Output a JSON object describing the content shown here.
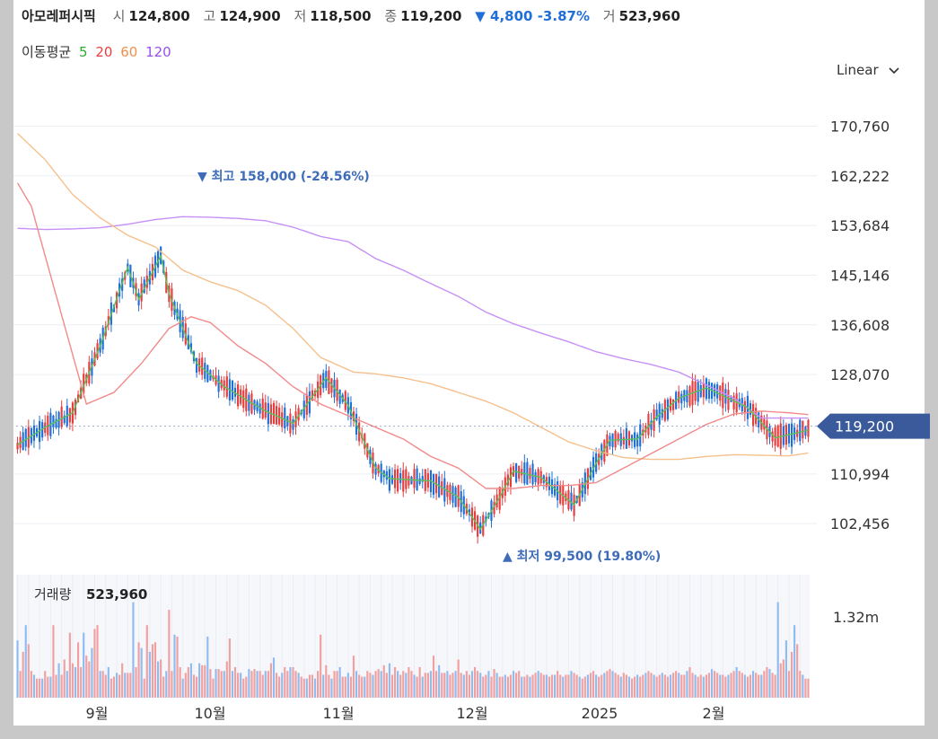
{
  "header": {
    "name": "아모레퍼시픽",
    "open_label": "시",
    "open": "124,800",
    "high_label": "고",
    "high": "124,900",
    "low_label": "저",
    "low": "118,500",
    "close_label": "종",
    "close": "119,200",
    "change": "▼ 4,800 -3.87%",
    "volume_label": "거",
    "volume": "523,960"
  },
  "ma_legend": {
    "label": "이동평균",
    "items": [
      {
        "text": "5",
        "color": "#2eaa2e"
      },
      {
        "text": "20",
        "color": "#e8403f"
      },
      {
        "text": "60",
        "color": "#f0904a"
      },
      {
        "text": "120",
        "color": "#9a4ff0"
      }
    ]
  },
  "scale_selector": {
    "label": "Linear",
    "icon": "chevron-down-icon"
  },
  "colors": {
    "up": "#e63d3d",
    "down": "#1f6fd6",
    "ma5": "#5cc05c",
    "ma20": "#f28a8a",
    "ma60": "#f6c08d",
    "ma120": "#c690f7",
    "price_tag": "#3a5a9c",
    "annotation": "#3f6cb8",
    "vol_up": "#f0a0a0",
    "vol_down": "#8fbcf0"
  },
  "chart_data": {
    "type": "candlestick",
    "y_axis": {
      "ticks": [
        170760,
        162222,
        153684,
        145146,
        136608,
        128070,
        110994,
        102456
      ],
      "range": [
        96000,
        177000
      ]
    },
    "x_axis": {
      "labels": [
        "9월",
        "10월",
        "11월",
        "12월",
        "2025",
        "2월"
      ]
    },
    "current_price": {
      "label": "119,200",
      "value": 119200
    },
    "high_marker": {
      "text": "▼ 최고 158,000 (-24.56%)",
      "value": 158000
    },
    "low_marker": {
      "text": "▲ 최저 99,500 (19.80%)",
      "value": 99500
    },
    "volume_panel": {
      "title": "거래량",
      "value": "523,960",
      "axis_label": "1.32m",
      "axis_value": 1320000
    },
    "series": [
      {
        "name": "5",
        "anchors": [
          [
            0,
            116000
          ],
          [
            10,
            119000
          ],
          [
            20,
            121500
          ],
          [
            30,
            133000
          ],
          [
            40,
            146500
          ],
          [
            44,
            141000
          ],
          [
            52,
            148500
          ],
          [
            55,
            142000
          ],
          [
            65,
            130000
          ],
          [
            75,
            126000
          ],
          [
            90,
            121800
          ],
          [
            100,
            119700
          ],
          [
            112,
            127500
          ],
          [
            120,
            122800
          ],
          [
            130,
            112000
          ],
          [
            135,
            110200
          ],
          [
            150,
            109800
          ],
          [
            160,
            107000
          ],
          [
            168,
            101500
          ],
          [
            175,
            107000
          ],
          [
            180,
            111500
          ],
          [
            190,
            110400
          ],
          [
            202,
            105700
          ],
          [
            210,
            112800
          ],
          [
            215,
            116800
          ],
          [
            225,
            117000
          ],
          [
            232,
            120800
          ],
          [
            240,
            124000
          ],
          [
            250,
            125800
          ],
          [
            258,
            124000
          ],
          [
            265,
            122400
          ],
          [
            275,
            117200
          ],
          [
            287,
            118500
          ]
        ]
      },
      {
        "name": "20",
        "anchors": [
          [
            0,
            161000
          ],
          [
            5,
            157000
          ],
          [
            15,
            140000
          ],
          [
            25,
            123000
          ],
          [
            35,
            125000
          ],
          [
            45,
            130000
          ],
          [
            55,
            136000
          ],
          [
            63,
            138000
          ],
          [
            70,
            137000
          ],
          [
            80,
            133000
          ],
          [
            90,
            130000
          ],
          [
            100,
            126000
          ],
          [
            110,
            123000
          ],
          [
            120,
            121000
          ],
          [
            130,
            119000
          ],
          [
            140,
            117000
          ],
          [
            150,
            114000
          ],
          [
            160,
            112000
          ],
          [
            170,
            108500
          ],
          [
            180,
            108500
          ],
          [
            190,
            109000
          ],
          [
            200,
            109000
          ],
          [
            210,
            109500
          ],
          [
            220,
            112000
          ],
          [
            230,
            114500
          ],
          [
            240,
            117000
          ],
          [
            250,
            119500
          ],
          [
            260,
            121300
          ],
          [
            270,
            121800
          ],
          [
            280,
            121500
          ],
          [
            287,
            121200
          ]
        ]
      },
      {
        "name": "60",
        "anchors": [
          [
            0,
            169500
          ],
          [
            10,
            165000
          ],
          [
            20,
            159000
          ],
          [
            30,
            155000
          ],
          [
            40,
            152000
          ],
          [
            50,
            150000
          ],
          [
            60,
            146000
          ],
          [
            70,
            144000
          ],
          [
            80,
            142500
          ],
          [
            90,
            140000
          ],
          [
            100,
            136000
          ],
          [
            110,
            131000
          ],
          [
            122,
            128500
          ],
          [
            130,
            128200
          ],
          [
            140,
            127500
          ],
          [
            150,
            126500
          ],
          [
            160,
            125000
          ],
          [
            170,
            123500
          ],
          [
            180,
            121500
          ],
          [
            190,
            119000
          ],
          [
            200,
            116500
          ],
          [
            210,
            115000
          ],
          [
            220,
            113800
          ],
          [
            230,
            113500
          ],
          [
            240,
            113500
          ],
          [
            250,
            114000
          ],
          [
            260,
            114300
          ],
          [
            270,
            114200
          ],
          [
            280,
            114100
          ],
          [
            287,
            114600
          ]
        ]
      },
      {
        "name": "120",
        "anchors": [
          [
            0,
            153200
          ],
          [
            10,
            153000
          ],
          [
            20,
            153100
          ],
          [
            30,
            153300
          ],
          [
            40,
            153900
          ],
          [
            50,
            154700
          ],
          [
            60,
            155200
          ],
          [
            70,
            155100
          ],
          [
            80,
            154900
          ],
          [
            90,
            154500
          ],
          [
            100,
            153400
          ],
          [
            110,
            151800
          ],
          [
            120,
            150900
          ],
          [
            130,
            148000
          ],
          [
            140,
            146000
          ],
          [
            150,
            143700
          ],
          [
            160,
            141500
          ],
          [
            170,
            138800
          ],
          [
            180,
            136800
          ],
          [
            190,
            135200
          ],
          [
            200,
            133700
          ],
          [
            210,
            132000
          ],
          [
            220,
            130800
          ],
          [
            230,
            129800
          ],
          [
            240,
            128500
          ],
          [
            250,
            126300
          ],
          [
            260,
            124000
          ],
          [
            270,
            120600
          ],
          [
            287,
            120600
          ]
        ]
      }
    ]
  },
  "volume_bars": [
    0.3,
    0.14,
    0.24,
    0.38,
    0.28,
    0.14,
    0.12,
    0.1,
    0.1,
    0.1,
    0.14,
    0.11,
    0.11,
    0.38,
    0.12,
    0.18,
    0.12,
    0.2,
    0.14,
    0.34,
    0.18,
    0.16,
    0.29,
    0.16,
    0.34,
    0.22,
    0.19,
    0.26,
    0.36,
    0.38,
    0.14,
    0.14,
    0.12,
    0.16,
    0.1,
    0.11,
    0.13,
    0.12,
    0.18,
    0.13,
    0.13,
    0.13,
    0.5,
    0.16,
    0.29,
    0.26,
    0.1,
    0.38,
    0.24,
    0.28,
    0.29,
    0.19,
    0.2,
    0.11,
    0.14,
    0.46,
    0.14,
    0.33,
    0.32,
    0.16,
    0.1,
    0.13,
    0.16,
    0.18,
    0.12,
    0.11,
    0.18,
    0.17,
    0.17,
    0.32,
    0.15,
    0.1,
    0.15,
    0.15,
    0.14,
    0.14,
    0.19,
    0.31,
    0.14,
    0.16,
    0.13,
    0.13,
    0.1,
    0.11,
    0.15,
    0.14,
    0.15,
    0.14,
    0.14,
    0.12,
    0.14,
    0.14,
    0.18,
    0.21,
    0.13,
    0.11,
    0.13,
    0.16,
    0.14,
    0.16,
    0.16,
    0.14,
    0.13,
    0.11,
    0.1,
    0.1,
    0.12,
    0.12,
    0.1,
    0.14,
    0.33,
    0.12,
    0.17,
    0.12,
    0.1,
    0.14,
    0.14,
    0.16,
    0.11,
    0.11,
    0.13,
    0.11,
    0.22,
    0.14,
    0.12,
    0.11,
    0.11,
    0.14,
    0.13,
    0.12,
    0.14,
    0.15,
    0.14,
    0.17,
    0.13,
    0.18,
    0.12,
    0.16,
    0.14,
    0.12,
    0.14,
    0.13,
    0.16,
    0.14,
    0.12,
    0.11,
    0.16,
    0.11,
    0.13,
    0.13,
    0.14,
    0.22,
    0.14,
    0.17,
    0.13,
    0.13,
    0.14,
    0.12,
    0.13,
    0.14,
    0.2,
    0.13,
    0.12,
    0.14,
    0.12,
    0.14,
    0.16,
    0.14,
    0.13,
    0.11,
    0.12,
    0.14,
    0.11,
    0.15,
    0.13,
    0.11,
    0.11,
    0.12,
    0.11,
    0.12,
    0.14,
    0.13,
    0.14,
    0.11,
    0.11,
    0.12,
    0.11,
    0.12,
    0.13,
    0.14,
    0.13,
    0.12,
    0.12,
    0.11,
    0.12,
    0.12,
    0.14,
    0.12,
    0.11,
    0.12,
    0.12,
    0.14,
    0.13,
    0.12,
    0.11,
    0.1,
    0.11,
    0.12,
    0.13,
    0.14,
    0.12,
    0.11,
    0.12,
    0.13,
    0.14,
    0.15,
    0.14,
    0.13,
    0.12,
    0.11,
    0.13,
    0.12,
    0.11,
    0.1,
    0.11,
    0.12,
    0.11,
    0.12,
    0.13,
    0.14,
    0.13,
    0.12,
    0.11,
    0.12,
    0.13,
    0.12,
    0.11,
    0.12,
    0.13,
    0.14,
    0.13,
    0.12,
    0.12,
    0.14,
    0.16,
    0.13,
    0.12,
    0.11,
    0.12,
    0.11,
    0.12,
    0.13,
    0.15,
    0.14,
    0.13,
    0.12,
    0.12,
    0.11,
    0.12,
    0.13,
    0.14,
    0.16,
    0.14,
    0.13,
    0.12,
    0.11,
    0.12,
    0.14,
    0.13,
    0.12,
    0.12,
    0.14,
    0.16,
    0.15,
    0.13,
    0.12,
    0.5,
    0.18,
    0.2
  ]
}
